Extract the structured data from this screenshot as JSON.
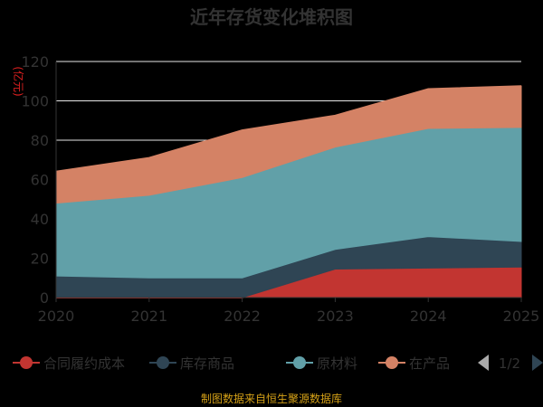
{
  "chart_data": {
    "type": "area",
    "stacked": true,
    "title": "近年存货变化堆积图",
    "ylabel": "(亿元)",
    "xlabel": "",
    "ylim": [
      0,
      120
    ],
    "yticks": [
      0,
      20,
      40,
      60,
      80,
      100,
      120
    ],
    "x": [
      "2020",
      "2021",
      "2022",
      "2023",
      "2024",
      "2025"
    ],
    "series": [
      {
        "name": "合同履约成本",
        "color": "#c23531",
        "values": [
          0,
          0,
          0,
          14.5,
          15,
          15.5
        ]
      },
      {
        "name": "库存商品",
        "color": "#2f4554",
        "values": [
          11,
          10,
          10,
          10,
          16,
          13
        ]
      },
      {
        "name": "原材料",
        "color": "#61a0a8",
        "values": [
          37,
          42,
          51,
          52,
          55,
          58
        ]
      },
      {
        "name": "在产品",
        "color": "#d48265",
        "values": [
          16,
          19,
          24,
          16,
          20,
          21
        ]
      }
    ],
    "legend": {
      "labels": [
        "合同履约成本",
        "库存商品",
        "原材料",
        "在产品"
      ],
      "page": "1/2",
      "position": "bottom"
    },
    "grid": true
  },
  "footer": {
    "source": "制图数据来自恒生聚源数据库"
  }
}
